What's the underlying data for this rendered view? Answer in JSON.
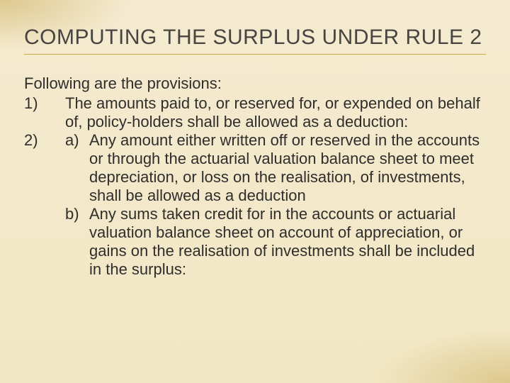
{
  "colors": {
    "background": "#f2e7c4",
    "underline": "#cfa64a",
    "text": "#2f2e2c",
    "title": "#474540",
    "vignette": "#dac282"
  },
  "typography": {
    "title_fontsize": 30,
    "body_fontsize": 22,
    "title_family": "Arial Narrow",
    "body_family": "Arial"
  },
  "title": "COMPUTING THE SURPLUS UNDER RULE 2",
  "lead": "Following are the provisions:",
  "items": [
    {
      "num": "1)",
      "text": "The amounts paid to, or reserved for, or expended on behalf of, policy-holders shall be allowed as a deduction:"
    },
    {
      "num": "2)",
      "sub": [
        {
          "mk": "a)",
          "text": "Any amount either written off or reserved in the accounts or through the actuarial valuation balance sheet to meet depreciation, or loss on the realisation, of investments, shall be allowed as a deduction"
        },
        {
          "mk": "b)",
          "text": "Any sums taken credit for in the accounts or actuarial valuation balance sheet on account of appreciation, or gains on the realisation  of investments shall be included in the surplus:"
        }
      ]
    }
  ]
}
